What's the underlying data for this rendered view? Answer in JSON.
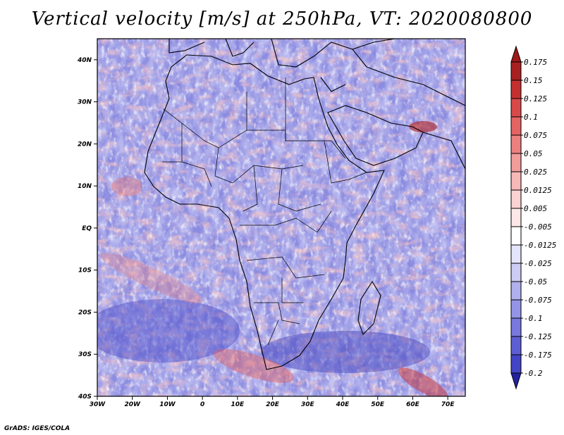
{
  "title": "Vertical velocity [m/s] at 250hPa, VT: 2020080800",
  "credit": "GrADS: IGES/COLA",
  "map": {
    "lon_range": [
      -30,
      75
    ],
    "lat_range": [
      -40,
      45
    ],
    "lat_ticks": [
      {
        "value": 40,
        "label": "40N"
      },
      {
        "value": 30,
        "label": "30N"
      },
      {
        "value": 20,
        "label": "20N"
      },
      {
        "value": 10,
        "label": "10N"
      },
      {
        "value": 0,
        "label": "EQ"
      },
      {
        "value": -10,
        "label": "10S"
      },
      {
        "value": -20,
        "label": "20S"
      },
      {
        "value": -30,
        "label": "30S"
      },
      {
        "value": -40,
        "label": "40S"
      }
    ],
    "lon_ticks": [
      {
        "value": -30,
        "label": "30W"
      },
      {
        "value": -20,
        "label": "20W"
      },
      {
        "value": -10,
        "label": "10W"
      },
      {
        "value": 0,
        "label": "0"
      },
      {
        "value": 10,
        "label": "10E"
      },
      {
        "value": 20,
        "label": "20E"
      },
      {
        "value": 30,
        "label": "30E"
      },
      {
        "value": 40,
        "label": "40E"
      },
      {
        "value": 50,
        "label": "50E"
      },
      {
        "value": 60,
        "label": "60E"
      },
      {
        "value": 70,
        "label": "70E"
      }
    ]
  },
  "colorbar": {
    "levels": [
      {
        "label": "0.175",
        "color": "#a82020"
      },
      {
        "label": "0.15",
        "color": "#c43030"
      },
      {
        "label": "0.125",
        "color": "#d84a4a"
      },
      {
        "label": "0.1",
        "color": "#e46464"
      },
      {
        "label": "0.075",
        "color": "#ec8080"
      },
      {
        "label": "0.05",
        "color": "#f29c9c"
      },
      {
        "label": "0.025",
        "color": "#f7b8b8"
      },
      {
        "label": "0.0125",
        "color": "#fad2d2"
      },
      {
        "label": "0.005",
        "color": "#fde8e8"
      },
      {
        "label": "-0.005",
        "color": "#ffffff"
      },
      {
        "label": "-0.0125",
        "color": "#e4e4fa"
      },
      {
        "label": "-0.025",
        "color": "#ccccf4"
      },
      {
        "label": "-0.05",
        "color": "#b0b0ee"
      },
      {
        "label": "-0.075",
        "color": "#9494e6"
      },
      {
        "label": "-0.1",
        "color": "#7878de"
      },
      {
        "label": "-0.125",
        "color": "#5e5ed4"
      },
      {
        "label": "-0.175",
        "color": "#4444c6"
      },
      {
        "label": "-0.2",
        "color": "#2c2cb0"
      }
    ],
    "top_color": "#a01818",
    "bottom_color": "#2222a0"
  }
}
